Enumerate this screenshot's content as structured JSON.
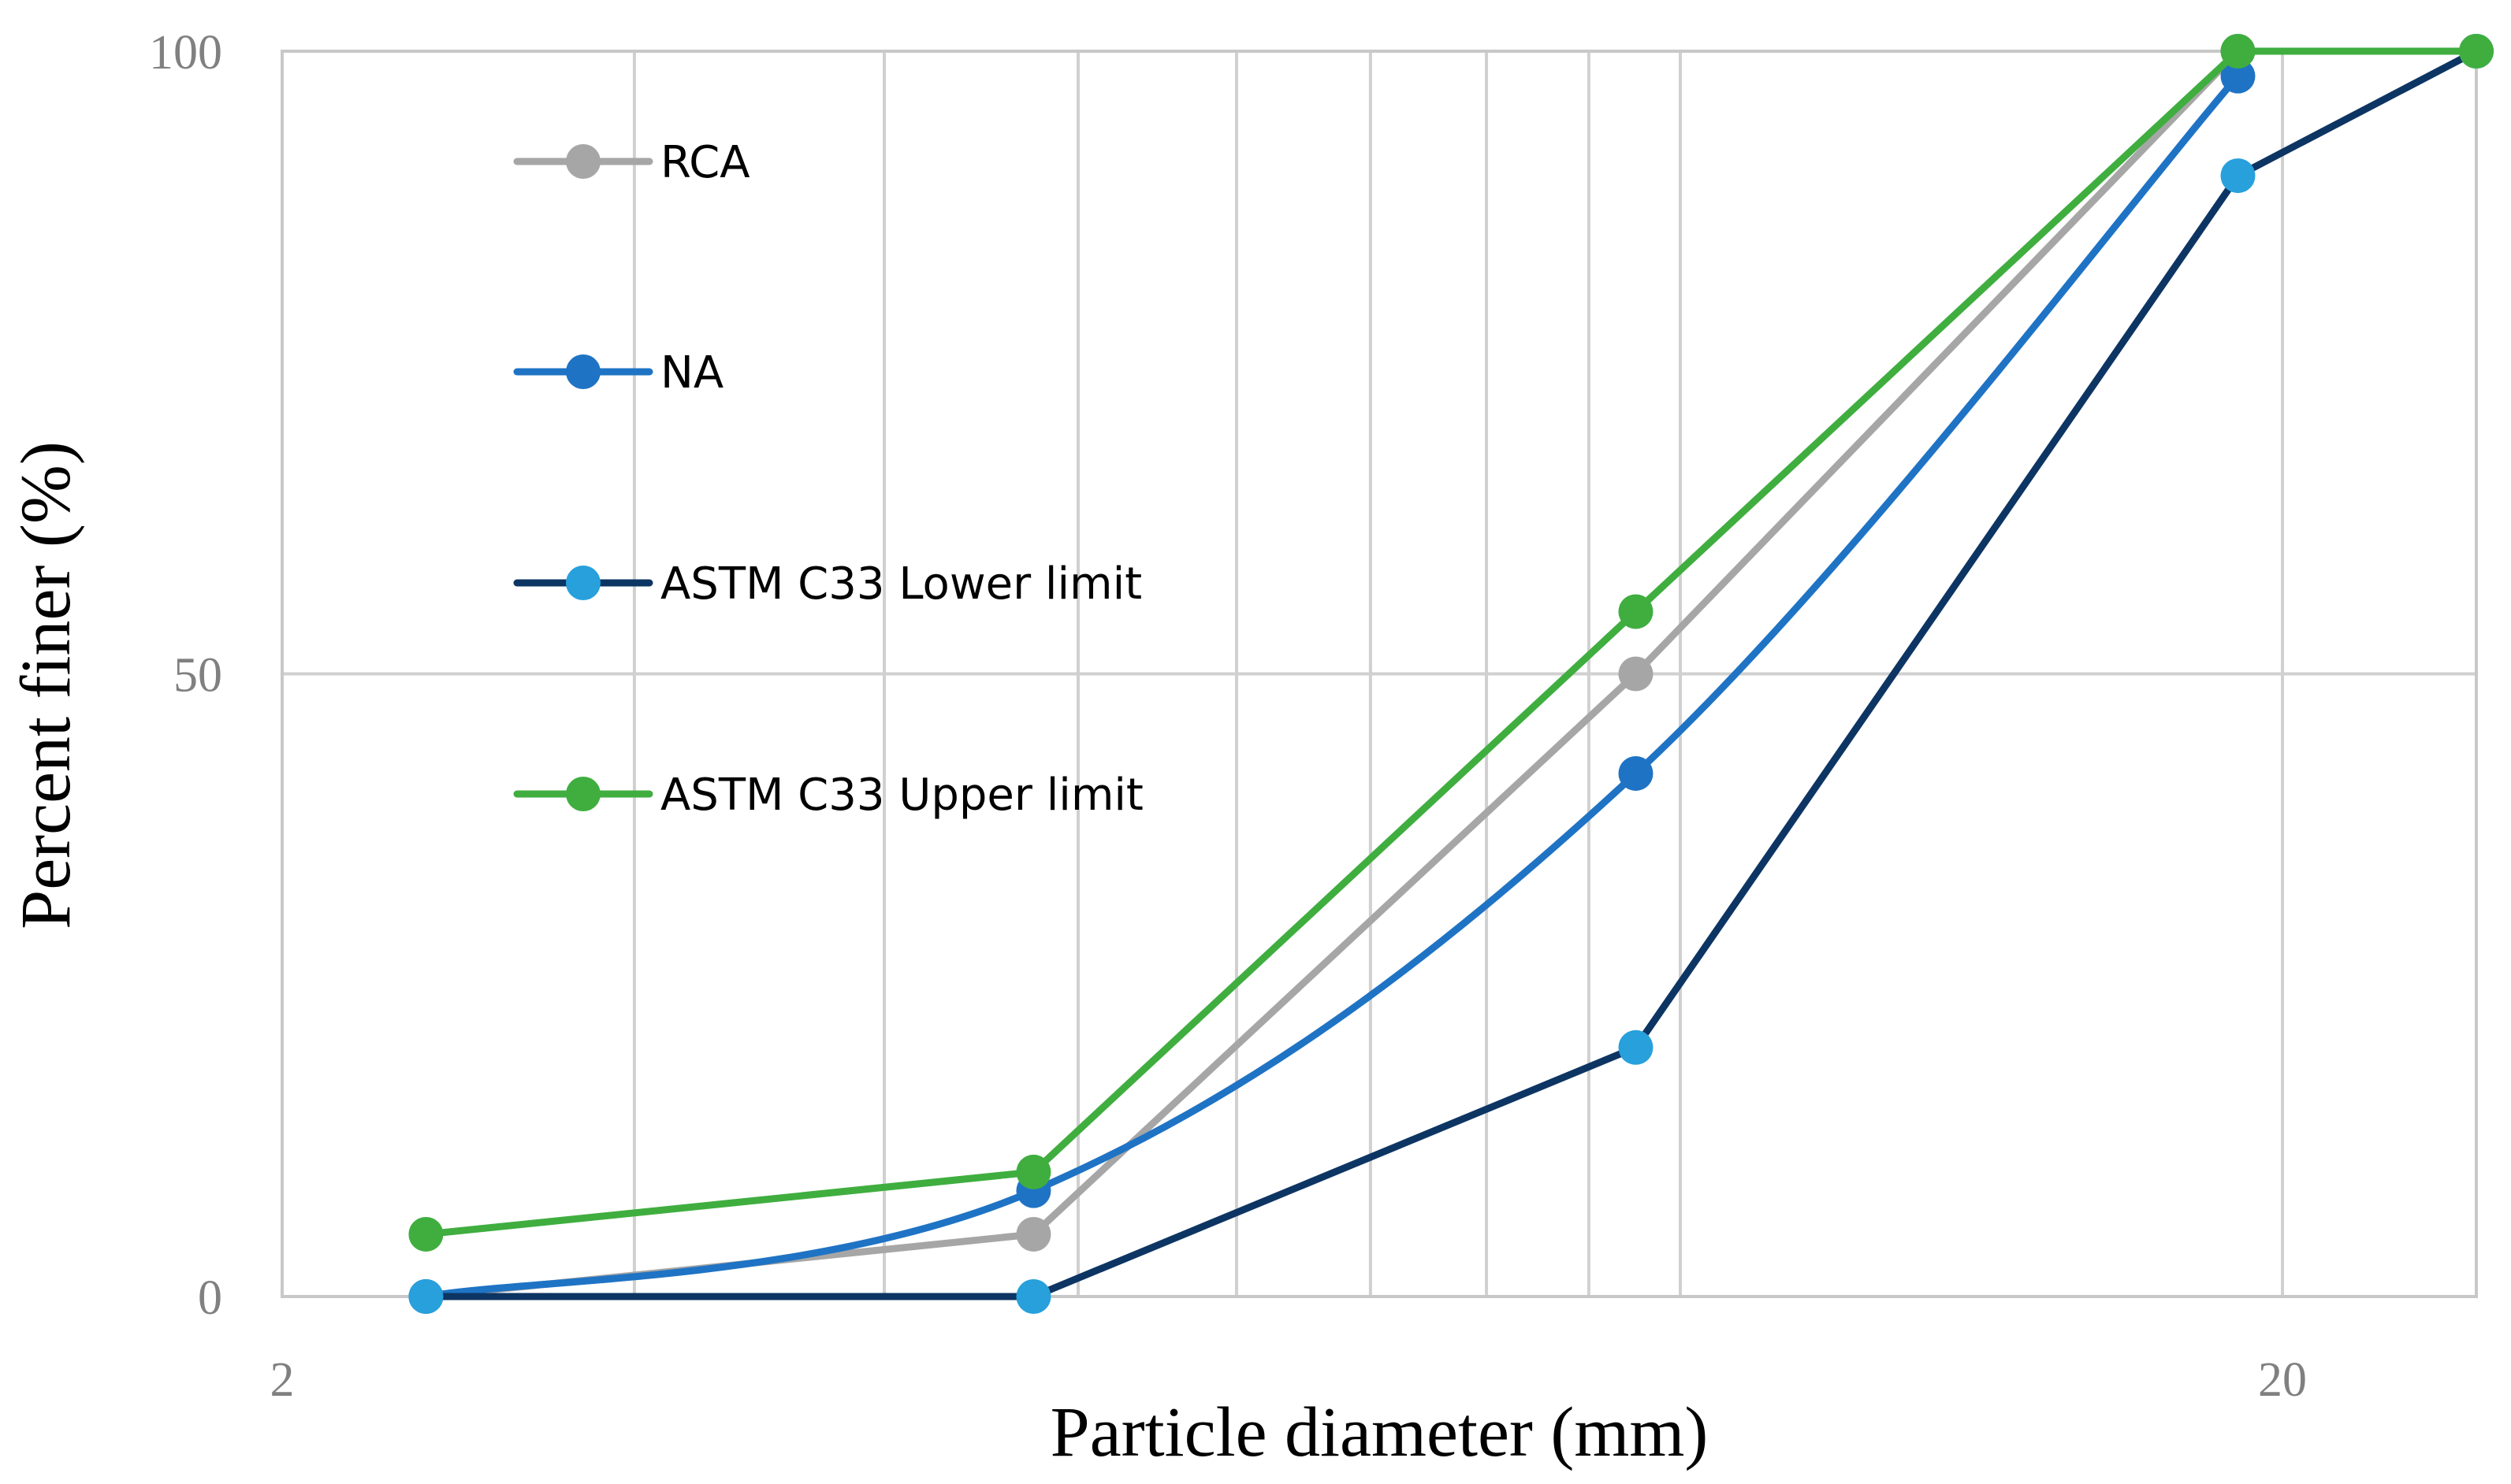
{
  "chart_data": {
    "type": "line",
    "xscale": "log",
    "xlabel": "Particle diameter (mm)",
    "ylabel": "Percent finer (%)",
    "xlim": [
      2,
      25
    ],
    "ylim": [
      0,
      100
    ],
    "x_ticks": [
      {
        "value": 2,
        "label": "2"
      },
      {
        "value": 20,
        "label": "20"
      }
    ],
    "y_ticks": [
      {
        "value": 0,
        "label": "0"
      },
      {
        "value": 50,
        "label": "50"
      },
      {
        "value": 100,
        "label": "100"
      }
    ],
    "grid": true,
    "legend_position": "top-left",
    "series": [
      {
        "name": "RCA",
        "color": "#a6a6a6",
        "marker_color": "#a6a6a6",
        "smooth": false,
        "x": [
          2.36,
          4.75,
          9.5,
          19.0,
          25.0
        ],
        "values": [
          0,
          5,
          50,
          100,
          100
        ]
      },
      {
        "name": "NA",
        "color": "#1f73c4",
        "marker_color": "#1f73c4",
        "smooth": true,
        "x": [
          2.36,
          4.75,
          9.5,
          19.0
        ],
        "values": [
          0,
          8.5,
          42,
          98
        ]
      },
      {
        "name": "ASTM C33 Lower limit",
        "color": "#0d3563",
        "marker_color": "#27a0dc",
        "smooth": false,
        "x": [
          2.36,
          4.75,
          9.5,
          19.0,
          25.0
        ],
        "values": [
          0,
          0,
          20,
          90,
          100
        ]
      },
      {
        "name": "ASTM C33 Upper limit",
        "color": "#3fae3f",
        "marker_color": "#3fae3f",
        "smooth": false,
        "x": [
          2.36,
          4.75,
          9.5,
          19.0,
          25.0
        ],
        "values": [
          5,
          10,
          55,
          100,
          100
        ]
      }
    ]
  }
}
